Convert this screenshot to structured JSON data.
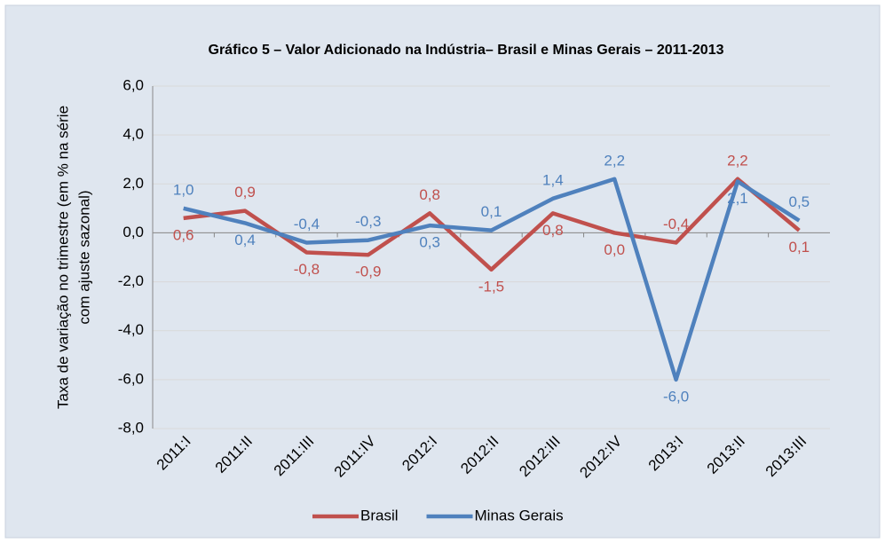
{
  "chart_data": {
    "type": "line",
    "title": "Gráfico 5 – Valor Adicionado na Indústria– Brasil e Minas Gerais – 2011-2013",
    "y_label": [
      "Taxa de variação no trimestre (em % na série",
      "com ajuste sazonal)"
    ],
    "categories": [
      "2011:I",
      "2011:II",
      "2011:III",
      "2011:IV",
      "2012:I",
      "2012:II",
      "2012:III",
      "2012:IV",
      "2013:I",
      "2013:II",
      "2013:III"
    ],
    "series": [
      {
        "name": "Brasil",
        "color": "#c0504d",
        "values": [
          0.6,
          0.9,
          -0.8,
          -0.9,
          0.8,
          -1.5,
          0.8,
          0.0,
          -0.4,
          2.2,
          0.1
        ],
        "value_labels": [
          "0,6",
          "0,9",
          "-0,8",
          "-0,9",
          "0,8",
          "-1,5",
          "0,8",
          "0,0",
          "-0,4",
          "2,2",
          "0,1"
        ]
      },
      {
        "name": "Minas Gerais",
        "color": "#4f81bd",
        "values": [
          1.0,
          0.4,
          -0.4,
          -0.3,
          0.3,
          0.1,
          1.4,
          2.2,
          -6.0,
          2.1,
          0.5
        ],
        "value_labels": [
          "1,0",
          "0,4",
          "-0,4",
          "-0,3",
          "0,3",
          "0,1",
          "1,4",
          "2,2",
          "-6,0",
          "2,1",
          "0,5"
        ]
      }
    ],
    "ylim": [
      -8,
      6
    ],
    "yticks": [
      {
        "value": -8,
        "label": "-8,0"
      },
      {
        "value": -6,
        "label": "-6,0"
      },
      {
        "value": -4,
        "label": "-4,0"
      },
      {
        "value": -2,
        "label": "-2,0"
      },
      {
        "value": 0,
        "label": "0,0"
      },
      {
        "value": 2,
        "label": "2,0"
      },
      {
        "value": 4,
        "label": "4,0"
      },
      {
        "value": 6,
        "label": "6,0"
      }
    ],
    "grid": true,
    "legend": "bottom"
  }
}
